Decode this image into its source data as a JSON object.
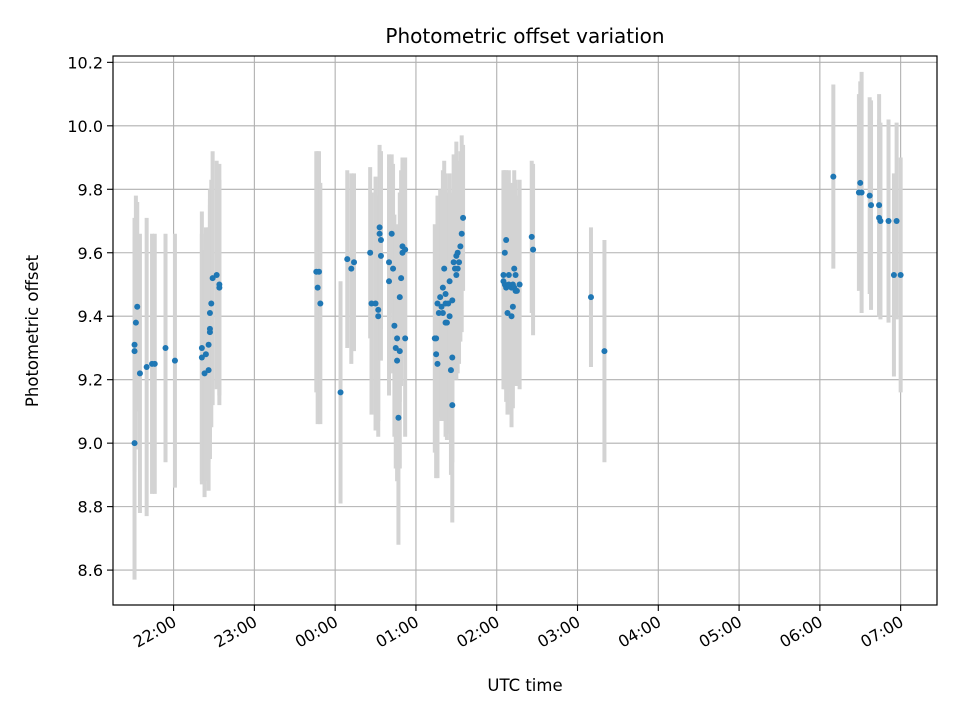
{
  "chart_data": {
    "type": "scatter",
    "title": "Photometric offset variation",
    "xlabel": "UTC time",
    "ylabel": "Photometric offset",
    "x_unit": "UTC time (HH:MM, starting previous evening)",
    "xlim": [
      "21:15",
      "07:27"
    ],
    "ylim": [
      8.49,
      10.22
    ],
    "grid": true,
    "x_ticks": [
      "22:00",
      "23:00",
      "00:00",
      "01:00",
      "02:00",
      "03:00",
      "04:00",
      "05:00",
      "06:00",
      "07:00"
    ],
    "y_ticks": [
      "8.6",
      "8.8",
      "9.0",
      "9.2",
      "9.4",
      "9.6",
      "9.8",
      "10.0",
      "10.2"
    ],
    "colors": {
      "points": "#1f77b4",
      "error_bars": "#d3d3d3",
      "grid": "#b0b0b0"
    },
    "points": [
      {
        "x": "21:31",
        "y": 9.0,
        "err": 0.43
      },
      {
        "x": "21:31",
        "y": 9.29,
        "err": 0.36
      },
      {
        "x": "21:31",
        "y": 9.31,
        "err": 0.4
      },
      {
        "x": "21:32",
        "y": 9.38,
        "err": 0.4
      },
      {
        "x": "21:33",
        "y": 9.43,
        "err": 0.33
      },
      {
        "x": "21:35",
        "y": 9.22,
        "err": 0.44
      },
      {
        "x": "21:40",
        "y": 9.24,
        "err": 0.47
      },
      {
        "x": "21:44",
        "y": 9.25,
        "err": 0.41
      },
      {
        "x": "21:46",
        "y": 9.25,
        "err": 0.41
      },
      {
        "x": "21:54",
        "y": 9.3,
        "err": 0.36
      },
      {
        "x": "22:01",
        "y": 9.26,
        "err": 0.4
      },
      {
        "x": "22:21",
        "y": 9.27,
        "err": 0.39
      },
      {
        "x": "22:21",
        "y": 9.3,
        "err": 0.43
      },
      {
        "x": "22:23",
        "y": 9.22,
        "err": 0.39
      },
      {
        "x": "22:24",
        "y": 9.28,
        "err": 0.4
      },
      {
        "x": "22:26",
        "y": 9.23,
        "err": 0.38
      },
      {
        "x": "22:26",
        "y": 9.31,
        "err": 0.37
      },
      {
        "x": "22:27",
        "y": 9.36,
        "err": 0.41
      },
      {
        "x": "22:27",
        "y": 9.35,
        "err": 0.4
      },
      {
        "x": "22:27",
        "y": 9.41,
        "err": 0.39
      },
      {
        "x": "22:28",
        "y": 9.44,
        "err": 0.39
      },
      {
        "x": "22:29",
        "y": 9.52,
        "err": 0.4
      },
      {
        "x": "22:32",
        "y": 9.53,
        "err": 0.36
      },
      {
        "x": "22:34",
        "y": 9.5,
        "err": 0.38
      },
      {
        "x": "22:34",
        "y": 9.49,
        "err": 0.34
      },
      {
        "x": "23:46",
        "y": 9.54,
        "err": 0.38
      },
      {
        "x": "23:47",
        "y": 9.49,
        "err": 0.43
      },
      {
        "x": "23:48",
        "y": 9.54,
        "err": 0.38
      },
      {
        "x": "23:49",
        "y": 9.44,
        "err": 0.38
      },
      {
        "x": "00:04",
        "y": 9.16,
        "err": 0.35
      },
      {
        "x": "00:09",
        "y": 9.58,
        "err": 0.28
      },
      {
        "x": "00:12",
        "y": 9.55,
        "err": 0.3
      },
      {
        "x": "00:14",
        "y": 9.57,
        "err": 0.28
      },
      {
        "x": "00:26",
        "y": 9.6,
        "err": 0.27
      },
      {
        "x": "00:27",
        "y": 9.44,
        "err": 0.35
      },
      {
        "x": "00:30",
        "y": 9.44,
        "err": 0.4
      },
      {
        "x": "00:32",
        "y": 9.4,
        "err": 0.38
      },
      {
        "x": "00:32",
        "y": 9.42,
        "err": 0.35
      },
      {
        "x": "00:33",
        "y": 9.68,
        "err": 0.26
      },
      {
        "x": "00:33",
        "y": 9.66,
        "err": 0.26
      },
      {
        "x": "00:34",
        "y": 9.64,
        "err": 0.28
      },
      {
        "x": "00:34",
        "y": 9.59,
        "err": 0.33
      },
      {
        "x": "00:40",
        "y": 9.51,
        "err": 0.36
      },
      {
        "x": "00:40",
        "y": 9.57,
        "err": 0.34
      },
      {
        "x": "00:42",
        "y": 9.66,
        "err": 0.25
      },
      {
        "x": "00:43",
        "y": 9.55,
        "err": 0.33
      },
      {
        "x": "00:44",
        "y": 9.37,
        "err": 0.35
      },
      {
        "x": "00:45",
        "y": 9.3,
        "err": 0.38
      },
      {
        "x": "00:46",
        "y": 9.33,
        "err": 0.36
      },
      {
        "x": "00:46",
        "y": 9.26,
        "err": 0.38
      },
      {
        "x": "00:47",
        "y": 9.08,
        "err": 0.4
      },
      {
        "x": "00:48",
        "y": 9.29,
        "err": 0.37
      },
      {
        "x": "00:48",
        "y": 9.46,
        "err": 0.33
      },
      {
        "x": "00:49",
        "y": 9.52,
        "err": 0.34
      },
      {
        "x": "00:50",
        "y": 9.62,
        "err": 0.26
      },
      {
        "x": "00:50",
        "y": 9.6,
        "err": 0.3
      },
      {
        "x": "00:52",
        "y": 9.33,
        "err": 0.31
      },
      {
        "x": "00:52",
        "y": 9.61,
        "err": 0.29
      },
      {
        "x": "01:14",
        "y": 9.33,
        "err": 0.36
      },
      {
        "x": "01:15",
        "y": 9.28,
        "err": 0.39
      },
      {
        "x": "01:15",
        "y": 9.33,
        "err": 0.32
      },
      {
        "x": "01:16",
        "y": 9.25,
        "err": 0.36
      },
      {
        "x": "01:16",
        "y": 9.44,
        "err": 0.34
      },
      {
        "x": "01:17",
        "y": 9.41,
        "err": 0.33
      },
      {
        "x": "01:18",
        "y": 9.46,
        "err": 0.34
      },
      {
        "x": "01:19",
        "y": 9.43,
        "err": 0.36
      },
      {
        "x": "01:20",
        "y": 9.49,
        "err": 0.37
      },
      {
        "x": "01:20",
        "y": 9.41,
        "err": 0.34
      },
      {
        "x": "01:21",
        "y": 9.55,
        "err": 0.34
      },
      {
        "x": "01:22",
        "y": 9.47,
        "err": 0.38
      },
      {
        "x": "01:22",
        "y": 9.44,
        "err": 0.36
      },
      {
        "x": "01:22",
        "y": 9.38,
        "err": 0.36
      },
      {
        "x": "01:23",
        "y": 9.38,
        "err": 0.37
      },
      {
        "x": "01:24",
        "y": 9.44,
        "err": 0.35
      },
      {
        "x": "01:25",
        "y": 9.51,
        "err": 0.34
      },
      {
        "x": "01:25",
        "y": 9.4,
        "err": 0.37
      },
      {
        "x": "01:26",
        "y": 9.23,
        "err": 0.33
      },
      {
        "x": "01:27",
        "y": 9.12,
        "err": 0.37
      },
      {
        "x": "01:27",
        "y": 9.27,
        "err": 0.33
      },
      {
        "x": "01:27",
        "y": 9.45,
        "err": 0.34
      },
      {
        "x": "01:28",
        "y": 9.57,
        "err": 0.34
      },
      {
        "x": "01:29",
        "y": 9.55,
        "err": 0.32
      },
      {
        "x": "01:30",
        "y": 9.59,
        "err": 0.36
      },
      {
        "x": "01:30",
        "y": 9.53,
        "err": 0.33
      },
      {
        "x": "01:31",
        "y": 9.55,
        "err": 0.33
      },
      {
        "x": "01:31",
        "y": 9.6,
        "err": 0.28
      },
      {
        "x": "01:32",
        "y": 9.57,
        "err": 0.32
      },
      {
        "x": "01:33",
        "y": 9.62,
        "err": 0.3
      },
      {
        "x": "01:34",
        "y": 9.66,
        "err": 0.31
      },
      {
        "x": "01:35",
        "y": 9.71,
        "err": 0.23
      },
      {
        "x": "02:05",
        "y": 9.51,
        "err": 0.34
      },
      {
        "x": "02:05",
        "y": 9.53,
        "err": 0.33
      },
      {
        "x": "02:06",
        "y": 9.6,
        "err": 0.26
      },
      {
        "x": "02:06",
        "y": 9.5,
        "err": 0.33
      },
      {
        "x": "02:07",
        "y": 9.64,
        "err": 0.22
      },
      {
        "x": "02:07",
        "y": 9.49,
        "err": 0.36
      },
      {
        "x": "02:08",
        "y": 9.41,
        "err": 0.32
      },
      {
        "x": "02:09",
        "y": 9.5,
        "err": 0.3
      },
      {
        "x": "02:09",
        "y": 9.53,
        "err": 0.33
      },
      {
        "x": "02:11",
        "y": 9.4,
        "err": 0.35
      },
      {
        "x": "02:11",
        "y": 9.49,
        "err": 0.33
      },
      {
        "x": "02:12",
        "y": 9.43,
        "err": 0.32
      },
      {
        "x": "02:12",
        "y": 9.5,
        "err": 0.31
      },
      {
        "x": "02:13",
        "y": 9.49,
        "err": 0.3
      },
      {
        "x": "02:13",
        "y": 9.55,
        "err": 0.31
      },
      {
        "x": "02:14",
        "y": 9.53,
        "err": 0.3
      },
      {
        "x": "02:14",
        "y": 9.48,
        "err": 0.3
      },
      {
        "x": "02:15",
        "y": 9.48,
        "err": 0.3
      },
      {
        "x": "02:17",
        "y": 9.5,
        "err": 0.33
      },
      {
        "x": "02:26",
        "y": 9.65,
        "err": 0.24
      },
      {
        "x": "02:27",
        "y": 9.61,
        "err": 0.27
      },
      {
        "x": "03:10",
        "y": 9.46,
        "err": 0.22
      },
      {
        "x": "03:20",
        "y": 9.29,
        "err": 0.35
      },
      {
        "x": "06:10",
        "y": 9.84,
        "err": 0.29
      },
      {
        "x": "06:29",
        "y": 9.79,
        "err": 0.31
      },
      {
        "x": "06:30",
        "y": 9.82,
        "err": 0.32
      },
      {
        "x": "06:31",
        "y": 9.79,
        "err": 0.38
      },
      {
        "x": "06:37",
        "y": 9.78,
        "err": 0.31
      },
      {
        "x": "06:38",
        "y": 9.75,
        "err": 0.33
      },
      {
        "x": "06:44",
        "y": 9.75,
        "err": 0.35
      },
      {
        "x": "06:44",
        "y": 9.71,
        "err": 0.31
      },
      {
        "x": "06:45",
        "y": 9.7,
        "err": 0.31
      },
      {
        "x": "06:51",
        "y": 9.7,
        "err": 0.32
      },
      {
        "x": "06:55",
        "y": 9.53,
        "err": 0.32
      },
      {
        "x": "06:57",
        "y": 9.7,
        "err": 0.31
      },
      {
        "x": "07:00",
        "y": 9.53,
        "err": 0.37
      }
    ]
  }
}
